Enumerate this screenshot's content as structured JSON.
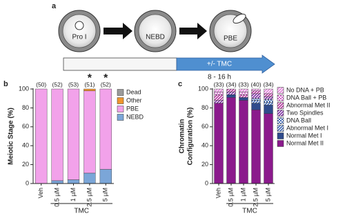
{
  "diagram": {
    "panel": "a",
    "stages": [
      "Pro I",
      "NEBD",
      "PBE"
    ],
    "treatment": "+/- TMC",
    "duration": "8 - 16 h"
  },
  "chart_data": [
    {
      "type": "stacked_bar",
      "panel": "b",
      "ylabel": [
        "Meiotic Stage (%)"
      ],
      "categories": [
        "Veh",
        "0.5 µM",
        "1 µM",
        "2.5 µM",
        "5 µM"
      ],
      "group_label": "TMC",
      "annotations": [
        "(50)",
        "(52)",
        "(53)",
        "(51)",
        "(52)"
      ],
      "markers": [
        null,
        null,
        null,
        "*",
        "*"
      ],
      "ylim": [
        0,
        100
      ],
      "yticks": [
        0,
        20,
        40,
        60,
        80,
        100
      ],
      "series": [
        {
          "name": "NEBD",
          "color": "#7ba6d8",
          "pattern": "solid",
          "values": [
            0,
            3,
            4,
            11,
            15
          ]
        },
        {
          "name": "PBE",
          "color": "#f2a2ea",
          "pattern": "solid",
          "values": [
            100,
            97,
            96,
            87,
            85
          ]
        },
        {
          "name": "Other",
          "color": "#f0962e",
          "pattern": "solid",
          "values": [
            0,
            0,
            0,
            2,
            0
          ]
        },
        {
          "name": "Dead",
          "color": "#9a9a9a",
          "pattern": "solid",
          "values": [
            0,
            0,
            0,
            0,
            0
          ]
        }
      ]
    },
    {
      "type": "stacked_bar",
      "panel": "c",
      "ylabel": [
        "Chromatin",
        "Configuration (%)"
      ],
      "categories": [
        "Veh",
        "0.5 µM",
        "1 µM",
        "2.5 µM",
        "5 µM"
      ],
      "group_label": "TMC",
      "annotations": [
        "(33)",
        "(34)",
        "(33)",
        "(40)",
        "(34)"
      ],
      "markers": [
        null,
        null,
        null,
        null,
        null
      ],
      "ylim": [
        0,
        100
      ],
      "yticks": [
        0,
        20,
        40,
        60,
        80,
        100
      ],
      "series": [
        {
          "name": "Normal Met II",
          "color": "#8b1a8c",
          "pattern": "solid",
          "values": [
            85,
            91,
            88,
            78,
            74
          ]
        },
        {
          "name": "Normal Met I",
          "color": "#2f4b8c",
          "pattern": "solid",
          "values": [
            0,
            3,
            3,
            7,
            9
          ]
        },
        {
          "name": "Abnormal Met I",
          "color": "#3a63b0",
          "pattern": "hatch",
          "values": [
            0,
            0,
            0,
            3,
            3
          ]
        },
        {
          "name": "DNA Ball",
          "color": "#3a63b0",
          "pattern": "dots",
          "values": [
            0,
            0,
            0,
            2,
            3
          ]
        },
        {
          "name": "Two Spindles",
          "color": "#7a2aa0",
          "pattern": "hatch",
          "values": [
            3,
            3,
            0,
            5,
            3
          ]
        },
        {
          "name": "Abnormal Met II",
          "color": "#b0309a",
          "pattern": "hatch",
          "values": [
            6,
            3,
            3,
            3,
            3
          ]
        },
        {
          "name": "DNA Ball + PB",
          "color": "#d060c8",
          "pattern": "dots",
          "values": [
            3,
            0,
            3,
            0,
            0
          ]
        },
        {
          "name": "No DNA + PB",
          "color": "#e080d8",
          "pattern": "hatch",
          "values": [
            3,
            0,
            3,
            2,
            5
          ]
        }
      ]
    }
  ]
}
